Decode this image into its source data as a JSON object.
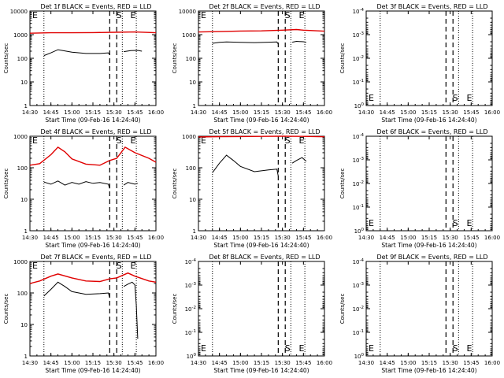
{
  "figure": {
    "colors": {
      "events": "#000000",
      "lld": "#e00000",
      "axes": "#000000"
    }
  },
  "time_ticks": [
    "14:30",
    "14:45",
    "15:00",
    "15:15",
    "15:30",
    "15:45",
    "16:00"
  ],
  "chart_data": [
    {
      "type": "line",
      "title": "Det 1f BLACK = Events, RED = LLD",
      "xlabel": "Start Time (09-Feb-16 14:24:40)",
      "ylabel": "Counts/sec",
      "xlim": [
        "14:30",
        "16:00"
      ],
      "ylim": [
        1,
        10000
      ],
      "yscale": "log",
      "yticks": [
        "1",
        "10",
        "100",
        "1000",
        "10000"
      ],
      "dotted_lines": [
        "14:40",
        "15:36",
        "15:46"
      ],
      "dashed_lines": [
        "15:27",
        "15:32"
      ],
      "markers": [
        {
          "label": "E",
          "x": "14:30"
        },
        {
          "label": "S",
          "x": "15:30"
        },
        {
          "label": "E",
          "x": "15:40"
        }
      ],
      "series": [
        {
          "name": "BLACK = Events",
          "color": "#000000",
          "x": [
            "14:40",
            "14:45",
            "14:50",
            "15:00",
            "15:10",
            "15:20",
            "15:26",
            "15:27"
          ],
          "y": [
            130,
            170,
            230,
            180,
            160,
            160,
            170,
            140
          ]
        },
        {
          "name": "BLACK = Events",
          "color": "#000000",
          "x": [
            "15:37",
            "15:42",
            "15:47",
            "15:50"
          ],
          "y": [
            190,
            210,
            215,
            200
          ]
        },
        {
          "name": "RED = LLD",
          "color": "#e00000",
          "x": [
            "14:30",
            "14:45",
            "15:00",
            "15:15",
            "15:30",
            "15:45",
            "16:00"
          ],
          "y": [
            1150,
            1200,
            1200,
            1220,
            1260,
            1300,
            1200
          ]
        }
      ]
    },
    {
      "type": "line",
      "title": "Det 2f BLACK = Events, RED = LLD",
      "xlabel": "Start Time (09-Feb-16 14:24:40)",
      "ylabel": "Counts/sec",
      "xlim": [
        "14:30",
        "16:00"
      ],
      "ylim": [
        1,
        10000
      ],
      "yscale": "log",
      "yticks": [
        "1",
        "10",
        "100",
        "1000",
        "10000"
      ],
      "dotted_lines": [
        "14:40",
        "15:36",
        "15:46"
      ],
      "dashed_lines": [
        "15:27",
        "15:32"
      ],
      "markers": [
        {
          "label": "E",
          "x": "14:30"
        },
        {
          "label": "S",
          "x": "15:30"
        },
        {
          "label": "E",
          "x": "15:40"
        }
      ],
      "series": [
        {
          "name": "BLACK = Events",
          "color": "#000000",
          "x": [
            "14:40",
            "14:45",
            "14:50",
            "15:00",
            "15:10",
            "15:20",
            "15:26",
            "15:27"
          ],
          "y": [
            430,
            470,
            490,
            470,
            460,
            480,
            490,
            400
          ]
        },
        {
          "name": "BLACK = Events",
          "color": "#000000",
          "x": [
            "15:37",
            "15:40",
            "15:45",
            "15:47"
          ],
          "y": [
            480,
            520,
            500,
            480
          ]
        },
        {
          "name": "RED = LLD",
          "color": "#e00000",
          "x": [
            "14:30",
            "14:45",
            "15:00",
            "15:15",
            "15:30",
            "15:40",
            "15:45",
            "16:00"
          ],
          "y": [
            1300,
            1350,
            1420,
            1450,
            1550,
            1650,
            1550,
            1400
          ]
        }
      ]
    },
    {
      "type": "line",
      "title": "Det 3f BLACK = Events, RED = LLD",
      "xlabel": "Start Time (09-Feb-16 14:24:40)",
      "ylabel": "Counts/sec",
      "xlim": [
        "14:30",
        "16:00"
      ],
      "ylim": [
        1,
        0.0001
      ],
      "yscale": "log",
      "yticks": [
        "10^0",
        "10^-1",
        "10^-2",
        "10^-3",
        "10^-4"
      ],
      "dotted_lines": [
        "14:40",
        "15:36",
        "15:46"
      ],
      "dashed_lines": [
        "15:27",
        "15:32"
      ],
      "markers": [
        {
          "label": "E",
          "x": "14:30"
        },
        {
          "label": "S",
          "x": "15:30"
        },
        {
          "label": "E",
          "x": "15:40"
        }
      ],
      "series": []
    },
    {
      "type": "line",
      "title": "Det 4f BLACK = Events, RED = LLD",
      "xlabel": "Start Time (09-Feb-16 14:24:40)",
      "ylabel": "Counts/sec",
      "xlim": [
        "14:30",
        "16:00"
      ],
      "ylim": [
        1,
        1000
      ],
      "yscale": "log",
      "yticks": [
        "1",
        "10",
        "100",
        "1000"
      ],
      "dotted_lines": [
        "14:40",
        "15:36",
        "15:46"
      ],
      "dashed_lines": [
        "15:27",
        "15:32"
      ],
      "markers": [
        {
          "label": "E",
          "x": "14:30"
        },
        {
          "label": "S",
          "x": "15:30"
        },
        {
          "label": "E",
          "x": "15:40"
        }
      ],
      "series": [
        {
          "name": "BLACK = Events",
          "color": "#000000",
          "x": [
            "14:40",
            "14:45",
            "14:50",
            "14:55",
            "15:00",
            "15:05",
            "15:10",
            "15:15",
            "15:20",
            "15:26",
            "15:27"
          ],
          "y": [
            35,
            30,
            38,
            28,
            34,
            30,
            36,
            32,
            34,
            30,
            22
          ]
        },
        {
          "name": "BLACK = Events",
          "color": "#000000",
          "x": [
            "15:37",
            "15:40",
            "15:45",
            "15:47"
          ],
          "y": [
            28,
            34,
            30,
            32
          ]
        },
        {
          "name": "RED = LLD",
          "color": "#e00000",
          "x": [
            "14:30",
            "14:37",
            "14:45",
            "14:50",
            "14:55",
            "15:00",
            "15:10",
            "15:20",
            "15:27",
            "15:32",
            "15:38",
            "15:45",
            "15:55",
            "16:00"
          ],
          "y": [
            120,
            135,
            260,
            450,
            320,
            190,
            130,
            120,
            170,
            200,
            450,
            300,
            200,
            150
          ]
        }
      ]
    },
    {
      "type": "line",
      "title": "Det 5f BLACK = Events, RED = LLD",
      "xlabel": "Start Time (09-Feb-16 14:24:40)",
      "ylabel": "Counts/sec",
      "xlim": [
        "14:30",
        "16:00"
      ],
      "ylim": [
        1,
        1000
      ],
      "yscale": "log",
      "yticks": [
        "1",
        "10",
        "100",
        "1000"
      ],
      "dotted_lines": [
        "14:40",
        "15:36",
        "15:46"
      ],
      "dashed_lines": [
        "15:27",
        "15:32"
      ],
      "markers": [
        {
          "label": "E",
          "x": "14:30"
        },
        {
          "label": "S",
          "x": "15:30"
        },
        {
          "label": "E",
          "x": "15:40"
        }
      ],
      "series": [
        {
          "name": "BLACK = Events",
          "color": "#000000",
          "x": [
            "14:40",
            "14:45",
            "14:50",
            "14:55",
            "15:00",
            "15:10",
            "15:20",
            "15:26",
            "15:27"
          ],
          "y": [
            70,
            140,
            250,
            170,
            110,
            75,
            85,
            90,
            55
          ]
        },
        {
          "name": "BLACK = Events",
          "color": "#000000",
          "x": [
            "15:37",
            "15:40",
            "15:44",
            "15:47"
          ],
          "y": [
            140,
            170,
            210,
            160
          ]
        },
        {
          "name": "RED = LLD",
          "color": "#e00000",
          "x": [
            "14:30",
            "14:45",
            "15:00",
            "15:15",
            "15:30",
            "15:45",
            "16:00"
          ],
          "y": [
            950,
            970,
            980,
            990,
            1000,
            990,
            960
          ]
        }
      ]
    },
    {
      "type": "line",
      "title": "Det 6f BLACK = Events, RED = LLD",
      "xlabel": "Start Time (09-Feb-16 14:24:40)",
      "ylabel": "Counts/sec",
      "xlim": [
        "14:30",
        "16:00"
      ],
      "ylim": [
        1,
        0.0001
      ],
      "yscale": "log",
      "yticks": [
        "10^0",
        "10^-1",
        "10^-2",
        "10^-3",
        "10^-4"
      ],
      "dotted_lines": [
        "14:40",
        "15:36",
        "15:46"
      ],
      "dashed_lines": [
        "15:27",
        "15:32"
      ],
      "markers": [
        {
          "label": "E",
          "x": "14:30"
        },
        {
          "label": "S",
          "x": "15:30"
        },
        {
          "label": "E",
          "x": "15:40"
        }
      ],
      "series": []
    },
    {
      "type": "line",
      "title": "Det 7f BLACK = Events, RED = LLD",
      "xlabel": "Start Time (09-Feb-16 14:24:40)",
      "ylabel": "Counts/sec",
      "xlim": [
        "14:30",
        "16:00"
      ],
      "ylim": [
        1,
        1000
      ],
      "yscale": "log",
      "yticks": [
        "1",
        "10",
        "100",
        "1000"
      ],
      "dotted_lines": [
        "14:40",
        "15:36",
        "15:46"
      ],
      "dashed_lines": [
        "15:27",
        "15:32"
      ],
      "markers": [
        {
          "label": "E",
          "x": "14:30"
        },
        {
          "label": "S",
          "x": "15:30"
        },
        {
          "label": "E",
          "x": "15:40"
        }
      ],
      "series": [
        {
          "name": "BLACK = Events",
          "color": "#000000",
          "x": [
            "14:40",
            "14:45",
            "14:50",
            "14:55",
            "15:00",
            "15:10",
            "15:20",
            "15:26",
            "15:27"
          ],
          "y": [
            80,
            130,
            220,
            160,
            110,
            90,
            95,
            100,
            70
          ]
        },
        {
          "name": "BLACK = Events",
          "color": "#000000",
          "x": [
            "15:37",
            "15:40",
            "15:43",
            "15:45",
            "15:46",
            "15:47"
          ],
          "y": [
            160,
            190,
            220,
            180,
            40,
            3.5
          ]
        },
        {
          "name": "RED = LLD",
          "color": "#e00000",
          "x": [
            "14:30",
            "14:37",
            "14:45",
            "14:50",
            "15:00",
            "15:10",
            "15:20",
            "15:27",
            "15:32",
            "15:40",
            "15:45",
            "15:55",
            "16:00"
          ],
          "y": [
            200,
            240,
            340,
            400,
            300,
            240,
            230,
            280,
            300,
            430,
            340,
            240,
            220
          ]
        }
      ]
    },
    {
      "type": "line",
      "title": "Det 8f BLACK = Events, RED = LLD",
      "xlabel": "Start Time (09-Feb-16 14:24:40)",
      "ylabel": "Counts/sec",
      "xlim": [
        "14:30",
        "16:00"
      ],
      "ylim": [
        1,
        0.0001
      ],
      "yscale": "log",
      "yticks": [
        "10^0",
        "10^-1",
        "10^-2",
        "10^-3",
        "10^-4"
      ],
      "dotted_lines": [
        "14:40",
        "15:36",
        "15:46"
      ],
      "dashed_lines": [
        "15:27",
        "15:32"
      ],
      "markers": [
        {
          "label": "E",
          "x": "14:30"
        },
        {
          "label": "S",
          "x": "15:30"
        },
        {
          "label": "E",
          "x": "15:40"
        }
      ],
      "series": []
    },
    {
      "type": "line",
      "title": "Det 9f BLACK = Events, RED = LLD",
      "xlabel": "Start Time (09-Feb-16 14:24:40)",
      "ylabel": "Counts/sec",
      "xlim": [
        "14:30",
        "16:00"
      ],
      "ylim": [
        1,
        0.0001
      ],
      "yscale": "log",
      "yticks": [
        "10^0",
        "10^-1",
        "10^-2",
        "10^-3",
        "10^-4"
      ],
      "dotted_lines": [
        "14:40",
        "15:36",
        "15:46"
      ],
      "dashed_lines": [
        "15:27",
        "15:32"
      ],
      "markers": [
        {
          "label": "E",
          "x": "14:30"
        },
        {
          "label": "S",
          "x": "15:30"
        },
        {
          "label": "E",
          "x": "15:40"
        }
      ],
      "series": []
    }
  ]
}
